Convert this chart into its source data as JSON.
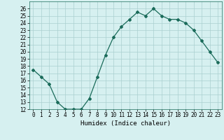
{
  "x": [
    0,
    1,
    2,
    3,
    4,
    5,
    6,
    7,
    8,
    9,
    10,
    11,
    12,
    13,
    14,
    15,
    16,
    17,
    18,
    19,
    20,
    21,
    22,
    23
  ],
  "y": [
    17.5,
    16.5,
    15.5,
    13,
    12,
    12,
    12,
    13.5,
    16.5,
    19.5,
    22,
    23.5,
    24.5,
    25.5,
    25,
    26,
    25,
    24.5,
    24.5,
    24,
    23,
    21.5,
    20,
    18.5
  ],
  "line_color": "#1a6b5a",
  "marker": "D",
  "marker_size": 2.0,
  "bg_color": "#d6f0f0",
  "grid_color": "#aacfcf",
  "xlabel": "Humidex (Indice chaleur)",
  "ylim": [
    12,
    27
  ],
  "xlim": [
    -0.5,
    23.5
  ],
  "yticks": [
    12,
    13,
    14,
    15,
    16,
    17,
    18,
    19,
    20,
    21,
    22,
    23,
    24,
    25,
    26
  ],
  "xticks": [
    0,
    1,
    2,
    3,
    4,
    5,
    6,
    7,
    8,
    9,
    10,
    11,
    12,
    13,
    14,
    15,
    16,
    17,
    18,
    19,
    20,
    21,
    22,
    23
  ],
  "tick_fontsize": 5.5,
  "xlabel_fontsize": 6.5
}
